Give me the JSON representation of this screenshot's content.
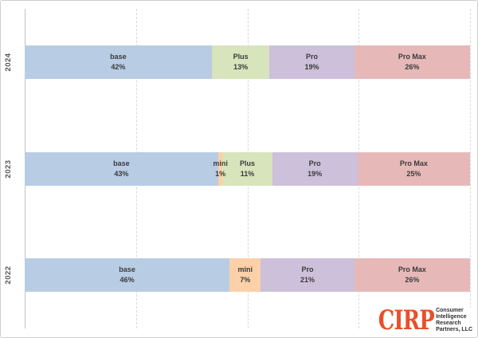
{
  "chart_data": {
    "type": "bar",
    "orientation": "horizontal",
    "stacked": true,
    "title": "",
    "xlabel": "",
    "ylabel": "",
    "unit": "%",
    "xlim": [
      0,
      100
    ],
    "grid": "dashed-vertical",
    "gridlines_pct": [
      25,
      50,
      75,
      100
    ],
    "categories": [
      "2024",
      "2023",
      "2022"
    ],
    "rows": [
      {
        "year": "2024",
        "segments": [
          {
            "name": "base",
            "value": 42,
            "label": "base",
            "pct_label": "42%"
          },
          {
            "name": "Plus",
            "value": 13,
            "label": "Plus",
            "pct_label": "13%"
          },
          {
            "name": "Pro",
            "value": 19,
            "label": "Pro",
            "pct_label": "19%"
          },
          {
            "name": "Pro Max",
            "value": 26,
            "label": "Pro Max",
            "pct_label": "26%"
          }
        ]
      },
      {
        "year": "2023",
        "segments": [
          {
            "name": "base",
            "value": 43,
            "label": "base",
            "pct_label": "43%"
          },
          {
            "name": "mini",
            "value": 1,
            "label": "mini",
            "pct_label": "1%"
          },
          {
            "name": "Plus",
            "value": 11,
            "label": "Plus",
            "pct_label": "11%"
          },
          {
            "name": "Pro",
            "value": 19,
            "label": "Pro",
            "pct_label": "19%"
          },
          {
            "name": "Pro Max",
            "value": 25,
            "label": "Pro Max",
            "pct_label": "25%"
          }
        ]
      },
      {
        "year": "2022",
        "segments": [
          {
            "name": "base",
            "value": 46,
            "label": "base",
            "pct_label": "46%"
          },
          {
            "name": "mini",
            "value": 7,
            "label": "mini",
            "pct_label": "7%"
          },
          {
            "name": "Pro",
            "value": 21,
            "label": "Pro",
            "pct_label": "21%"
          },
          {
            "name": "Pro Max",
            "value": 26,
            "label": "Pro Max",
            "pct_label": "26%"
          }
        ]
      }
    ],
    "colors": {
      "base": "#b8cce4",
      "mini": "#fcd0a8",
      "Plus": "#d7e4bc",
      "Pro": "#ccc0da",
      "Pro Max": "#e6b9b8"
    },
    "gridline_color": "#d9d9d9",
    "axis_line_color": "#c3c3c3",
    "label_text_color": "#3b3b3b",
    "year_label_color": "#575757"
  },
  "branding": {
    "logo_text": "CIRP",
    "logo_color": "#e8502a",
    "tagline_lines": [
      "Consumer",
      "Intelligence",
      "Research",
      "Partners, LLC"
    ]
  }
}
